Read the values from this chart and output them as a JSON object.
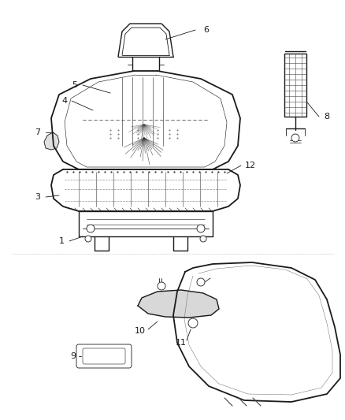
{
  "bg_color": "#ffffff",
  "line_color": "#1a1a1a",
  "label_color": "#1a1a1a",
  "figsize": [
    4.39,
    5.33
  ],
  "dpi": 100,
  "label_fontsize": 8.0
}
